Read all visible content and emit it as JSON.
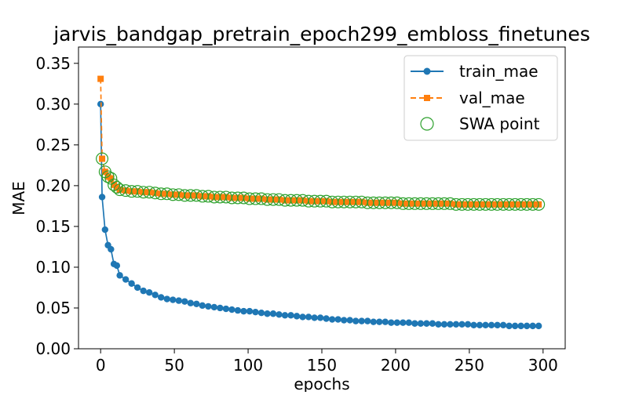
{
  "chart_data": {
    "type": "line",
    "title": "jarvis_bandgap_pretrain_epoch299_embloss_finetunes",
    "xlabel": "epochs",
    "ylabel": "MAE",
    "xlim": [
      -15,
      315
    ],
    "ylim": [
      0,
      0.37
    ],
    "xticks": [
      0,
      50,
      100,
      150,
      200,
      250,
      300
    ],
    "yticks": [
      0.0,
      0.05,
      0.1,
      0.15,
      0.2,
      0.25,
      0.3,
      0.35
    ],
    "xtick_labels": [
      "0",
      "50",
      "100",
      "150",
      "200",
      "250",
      "300"
    ],
    "ytick_labels": [
      "0.00",
      "0.05",
      "0.10",
      "0.15",
      "0.20",
      "0.25",
      "0.30",
      "0.35"
    ],
    "legend": {
      "placement": "top-right",
      "entries": [
        "train_mae",
        "val_mae",
        "SWA point"
      ]
    },
    "grid": false,
    "colors": {
      "train_mae": "#1f77b4",
      "val_mae": "#ff7f0e",
      "swa_point": "#2ca02c"
    },
    "series": [
      {
        "name": "train_mae",
        "marker": "circle",
        "line": "solid",
        "x": [
          0,
          1,
          3,
          5,
          7,
          9,
          11,
          13,
          17,
          21,
          25,
          29,
          33,
          37,
          41,
          45,
          49,
          53,
          57,
          61,
          65,
          69,
          73,
          77,
          81,
          85,
          89,
          93,
          97,
          101,
          105,
          109,
          113,
          117,
          121,
          125,
          129,
          133,
          137,
          141,
          145,
          149,
          153,
          157,
          161,
          165,
          169,
          173,
          177,
          181,
          185,
          189,
          193,
          197,
          201,
          205,
          209,
          213,
          217,
          221,
          225,
          229,
          233,
          237,
          241,
          245,
          249,
          253,
          257,
          261,
          265,
          269,
          273,
          277,
          281,
          285,
          289,
          293,
          297
        ],
        "y": [
          0.3,
          0.186,
          0.146,
          0.127,
          0.122,
          0.104,
          0.102,
          0.09,
          0.085,
          0.08,
          0.075,
          0.071,
          0.069,
          0.066,
          0.063,
          0.061,
          0.06,
          0.059,
          0.058,
          0.056,
          0.055,
          0.053,
          0.052,
          0.051,
          0.05,
          0.049,
          0.048,
          0.047,
          0.046,
          0.046,
          0.045,
          0.044,
          0.043,
          0.043,
          0.042,
          0.041,
          0.041,
          0.04,
          0.039,
          0.039,
          0.038,
          0.038,
          0.037,
          0.036,
          0.036,
          0.035,
          0.035,
          0.034,
          0.034,
          0.034,
          0.033,
          0.033,
          0.033,
          0.032,
          0.032,
          0.032,
          0.032,
          0.031,
          0.031,
          0.031,
          0.031,
          0.03,
          0.03,
          0.03,
          0.03,
          0.03,
          0.03,
          0.029,
          0.029,
          0.029,
          0.029,
          0.029,
          0.029,
          0.028,
          0.028,
          0.028,
          0.028,
          0.028,
          0.028
        ]
      },
      {
        "name": "val_mae",
        "marker": "square",
        "line": "dashed",
        "x": [
          0,
          1,
          3,
          5,
          7,
          9,
          11,
          13,
          17,
          21,
          25,
          29,
          33,
          37,
          41,
          45,
          49,
          53,
          57,
          61,
          65,
          69,
          73,
          77,
          81,
          85,
          89,
          93,
          97,
          101,
          105,
          109,
          113,
          117,
          121,
          125,
          129,
          133,
          137,
          141,
          145,
          149,
          153,
          157,
          161,
          165,
          169,
          173,
          177,
          181,
          185,
          189,
          193,
          197,
          201,
          205,
          209,
          213,
          217,
          221,
          225,
          229,
          233,
          237,
          241,
          245,
          249,
          253,
          257,
          261,
          265,
          269,
          273,
          277,
          281,
          285,
          289,
          293,
          297
        ],
        "y": [
          0.331,
          0.233,
          0.217,
          0.211,
          0.209,
          0.201,
          0.198,
          0.195,
          0.194,
          0.193,
          0.193,
          0.192,
          0.192,
          0.191,
          0.19,
          0.19,
          0.189,
          0.189,
          0.188,
          0.188,
          0.188,
          0.187,
          0.187,
          0.186,
          0.186,
          0.186,
          0.185,
          0.185,
          0.185,
          0.184,
          0.184,
          0.184,
          0.183,
          0.183,
          0.183,
          0.182,
          0.182,
          0.182,
          0.182,
          0.181,
          0.181,
          0.181,
          0.181,
          0.18,
          0.18,
          0.18,
          0.18,
          0.18,
          0.18,
          0.179,
          0.179,
          0.179,
          0.179,
          0.179,
          0.179,
          0.178,
          0.178,
          0.178,
          0.178,
          0.178,
          0.178,
          0.178,
          0.178,
          0.178,
          0.177,
          0.177,
          0.177,
          0.177,
          0.177,
          0.177,
          0.177,
          0.177,
          0.177,
          0.177,
          0.177,
          0.177,
          0.177,
          0.177,
          0.177
        ]
      },
      {
        "name": "SWA point",
        "marker": "hollow-circle",
        "line": "none",
        "x": [
          1,
          3,
          5,
          7,
          9,
          11,
          13,
          17,
          21,
          25,
          29,
          33,
          37,
          41,
          45,
          49,
          53,
          57,
          61,
          65,
          69,
          73,
          77,
          81,
          85,
          89,
          93,
          97,
          101,
          105,
          109,
          113,
          117,
          121,
          125,
          129,
          133,
          137,
          141,
          145,
          149,
          153,
          157,
          161,
          165,
          169,
          173,
          177,
          181,
          185,
          189,
          193,
          197,
          201,
          205,
          209,
          213,
          217,
          221,
          225,
          229,
          233,
          237,
          241,
          245,
          249,
          253,
          257,
          261,
          265,
          269,
          273,
          277,
          281,
          285,
          289,
          293,
          297
        ],
        "y": [
          0.233,
          0.217,
          0.211,
          0.209,
          0.201,
          0.198,
          0.195,
          0.194,
          0.193,
          0.193,
          0.192,
          0.192,
          0.191,
          0.19,
          0.19,
          0.189,
          0.189,
          0.188,
          0.188,
          0.188,
          0.187,
          0.187,
          0.186,
          0.186,
          0.186,
          0.185,
          0.185,
          0.185,
          0.184,
          0.184,
          0.184,
          0.183,
          0.183,
          0.183,
          0.182,
          0.182,
          0.182,
          0.182,
          0.181,
          0.181,
          0.181,
          0.181,
          0.18,
          0.18,
          0.18,
          0.18,
          0.18,
          0.18,
          0.179,
          0.179,
          0.179,
          0.179,
          0.179,
          0.179,
          0.178,
          0.178,
          0.178,
          0.178,
          0.178,
          0.178,
          0.178,
          0.178,
          0.178,
          0.177,
          0.177,
          0.177,
          0.177,
          0.177,
          0.177,
          0.177,
          0.177,
          0.177,
          0.177,
          0.177,
          0.177,
          0.177,
          0.177,
          0.177
        ]
      }
    ]
  }
}
